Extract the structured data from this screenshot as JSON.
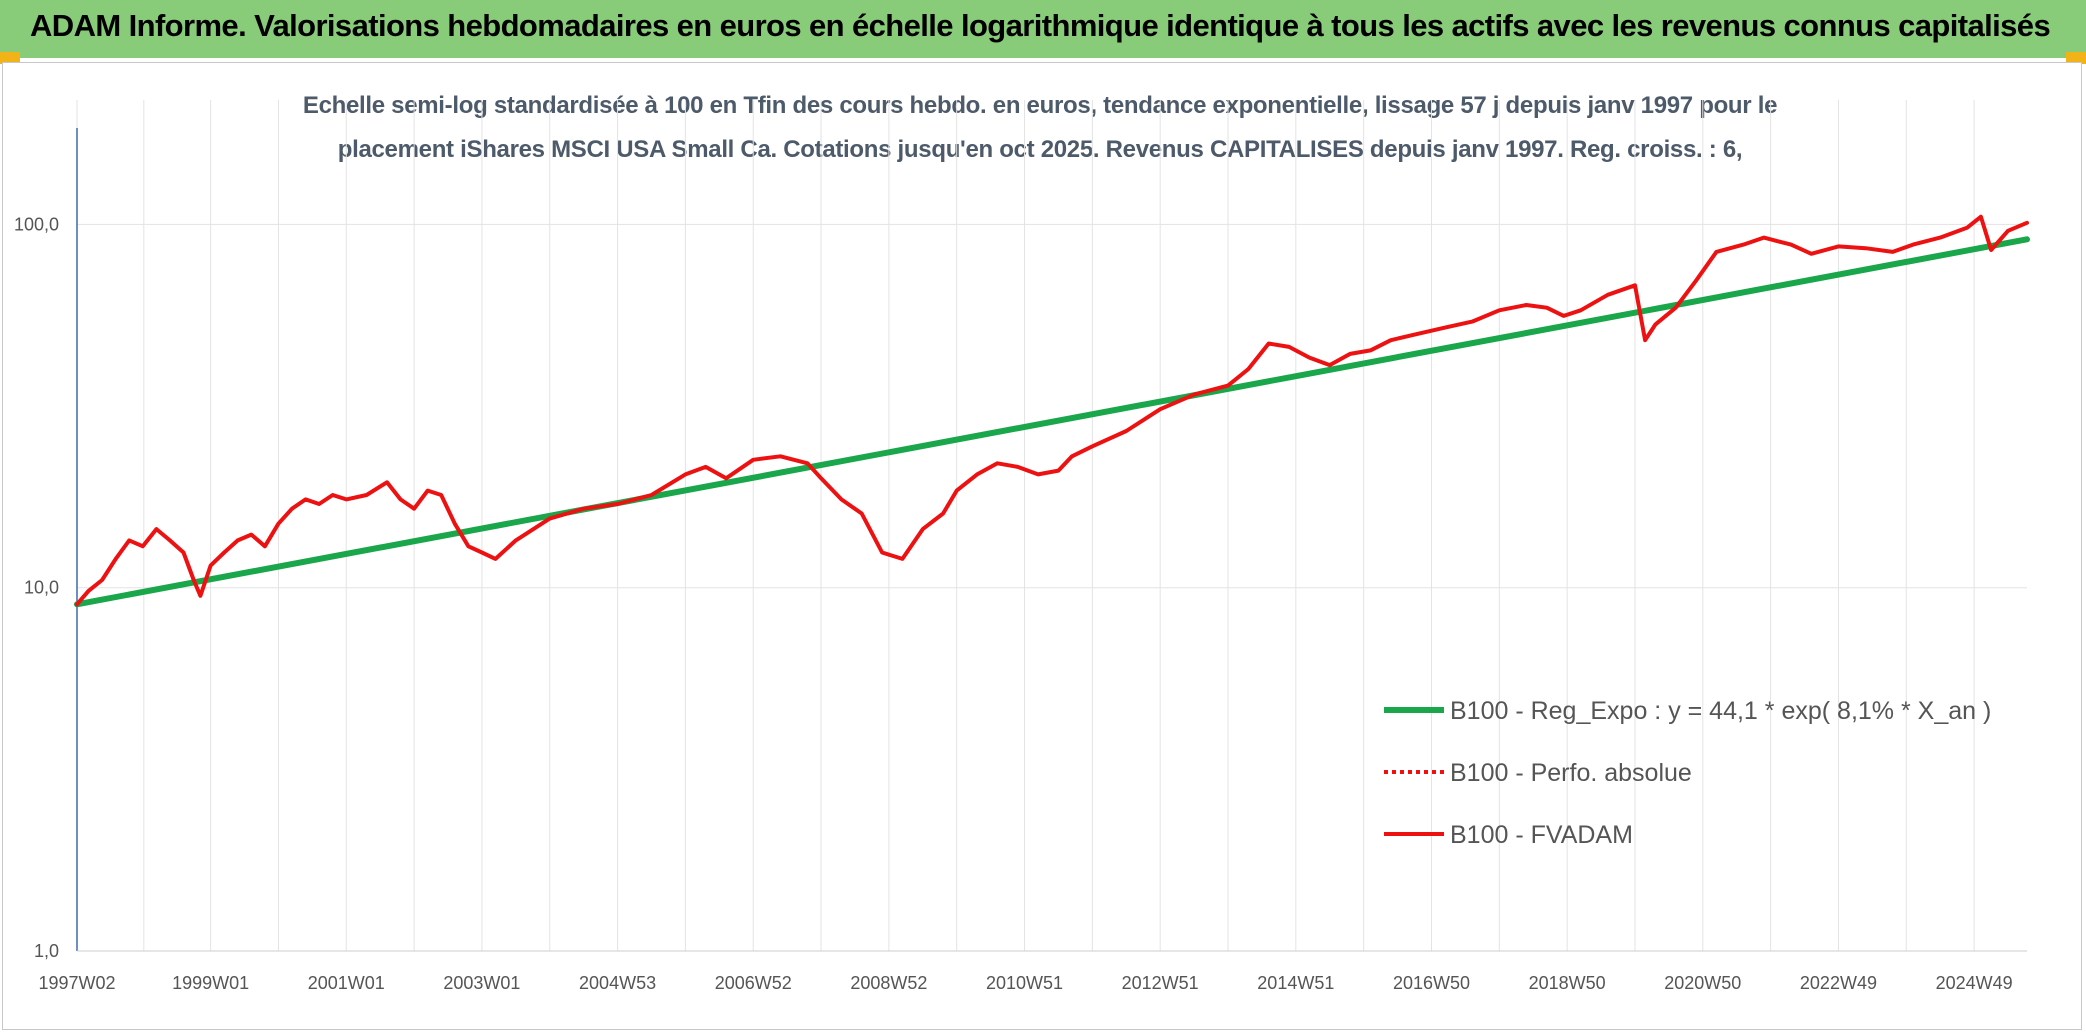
{
  "banner": {
    "title": "ADAM Informe. Valorisations hebdomadaires en euros en échelle logarithmique identique à tous les actifs avec les revenus connus capitalisés"
  },
  "subtitle": {
    "line1": "Echelle semi-log standardisée à 100 en Tfin des cours hebdo. en euros, tendance exponentielle, lissage 57 j depuis janv 1997 pour le",
    "line2": "placement iShares MSCI USA Small Ca. Cotations jusqu'en oct 2025. Revenus CAPITALISES depuis janv 1997. Reg. croiss. : 6,"
  },
  "colors": {
    "banner": "#88cc7a",
    "accent_corner": "#f2b318",
    "regression": "#1aa64a",
    "fvadam": "#ee1111",
    "perfo": "#ee1111"
  },
  "chart_data": {
    "type": "line",
    "y_scale": "log",
    "ylim": [
      1,
      220
    ],
    "xlim": [
      1997.03,
      2025.78
    ],
    "y_ticks": [
      {
        "value": 1,
        "label": "1,0"
      },
      {
        "value": 10,
        "label": "10,0"
      },
      {
        "value": 100,
        "label": "100,0"
      }
    ],
    "x_ticks": [
      {
        "value": 1997.03,
        "label": "1997W02"
      },
      {
        "value": 1999.0,
        "label": "1999W01"
      },
      {
        "value": 2001.0,
        "label": "2001W01"
      },
      {
        "value": 2003.0,
        "label": "2003W01"
      },
      {
        "value": 2005.0,
        "label": "2004W53"
      },
      {
        "value": 2007.0,
        "label": "2006W52"
      },
      {
        "value": 2009.0,
        "label": "2008W52"
      },
      {
        "value": 2011.0,
        "label": "2010W51"
      },
      {
        "value": 2013.0,
        "label": "2012W51"
      },
      {
        "value": 2015.0,
        "label": "2014W51"
      },
      {
        "value": 2017.0,
        "label": "2016W50"
      },
      {
        "value": 2019.0,
        "label": "2018W50"
      },
      {
        "value": 2021.0,
        "label": "2020W50"
      },
      {
        "value": 2023.0,
        "label": "2022W49"
      },
      {
        "value": 2025.0,
        "label": "2024W49"
      }
    ],
    "grid": "vertical",
    "legend_position": "bottom-right",
    "series": [
      {
        "name": "B100 - Reg_Expo : y = 44,1 * exp( 8,1% * X_an )",
        "style": "solid-thick",
        "color": "#1aa64a",
        "x": [
          1997.03,
          2025.78
        ],
        "values": [
          9.0,
          91.0
        ]
      },
      {
        "name": "B100 - Perfo. absolue",
        "style": "dotted",
        "color": "#ee1111",
        "x": [],
        "values": []
      },
      {
        "name": "B100 - FVADAM",
        "style": "solid",
        "color": "#ee1111",
        "x": [
          1997.03,
          1997.2,
          1997.4,
          1997.6,
          1997.8,
          1998.0,
          1998.2,
          1998.4,
          1998.6,
          1998.75,
          1998.85,
          1999.0,
          1999.2,
          1999.4,
          1999.6,
          1999.8,
          2000.0,
          2000.2,
          2000.4,
          2000.6,
          2000.8,
          2001.0,
          2001.3,
          2001.6,
          2001.8,
          2002.0,
          2002.2,
          2002.4,
          2002.6,
          2002.8,
          2003.0,
          2003.2,
          2003.5,
          2004.0,
          2004.5,
          2005.0,
          2005.5,
          2006.0,
          2006.3,
          2006.6,
          2007.0,
          2007.4,
          2007.8,
          2008.0,
          2008.3,
          2008.6,
          2008.9,
          2009.2,
          2009.5,
          2009.8,
          2010.0,
          2010.3,
          2010.6,
          2010.9,
          2011.2,
          2011.5,
          2011.7,
          2012.0,
          2012.5,
          2013.0,
          2013.5,
          2014.0,
          2014.3,
          2014.6,
          2014.9,
          2015.2,
          2015.5,
          2015.8,
          2016.1,
          2016.4,
          2016.8,
          2017.2,
          2017.6,
          2018.0,
          2018.4,
          2018.7,
          2018.95,
          2019.2,
          2019.6,
          2020.0,
          2020.15,
          2020.3,
          2020.6,
          2020.9,
          2021.2,
          2021.6,
          2021.9,
          2022.3,
          2022.6,
          2023.0,
          2023.4,
          2023.8,
          2024.1,
          2024.5,
          2024.9,
          2025.1,
          2025.25,
          2025.5,
          2025.78
        ],
        "values": [
          9.0,
          9.8,
          10.5,
          12.0,
          13.5,
          13.0,
          14.5,
          13.5,
          12.5,
          10.5,
          9.5,
          11.5,
          12.5,
          13.5,
          14.0,
          13.0,
          15.0,
          16.5,
          17.5,
          17.0,
          18.0,
          17.5,
          18.0,
          19.5,
          17.5,
          16.5,
          18.5,
          18.0,
          15.0,
          13.0,
          12.5,
          12.0,
          13.5,
          15.5,
          16.5,
          17.0,
          18.0,
          20.5,
          21.5,
          20.0,
          22.5,
          23.0,
          22.0,
          20.0,
          17.5,
          16.0,
          12.5,
          12.0,
          14.5,
          16.0,
          18.5,
          20.5,
          22.0,
          21.5,
          20.5,
          21.0,
          23.0,
          24.5,
          27.0,
          31.0,
          34.0,
          36.0,
          40.0,
          47.0,
          46.0,
          43.0,
          41.0,
          44.0,
          45.0,
          48.0,
          50.0,
          52.0,
          54.0,
          58.0,
          60.0,
          59.0,
          56.0,
          58.0,
          64.0,
          68.0,
          48.0,
          53.0,
          59.0,
          70.0,
          84.0,
          88.0,
          92.0,
          88.0,
          83.0,
          87.0,
          86.0,
          84.0,
          88.0,
          92.0,
          98.0,
          105.0,
          85.0,
          96.0,
          101.0
        ]
      }
    ]
  }
}
